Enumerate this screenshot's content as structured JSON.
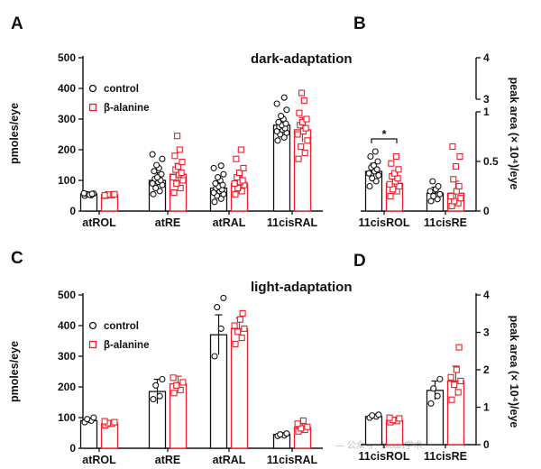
{
  "colors": {
    "control": "#111111",
    "beta_alanine": "#e8202a"
  },
  "panel_letters": {
    "A": "A",
    "B": "B",
    "C": "C",
    "D": "D"
  },
  "titles": {
    "dark": "dark-adaptation",
    "light": "light-adaptation"
  },
  "axes": {
    "left_ylabel": "pmoles/eye",
    "right_ylabel": "peak area (× 10⁴)/eye",
    "left_ticks": [
      "0",
      "100",
      "200",
      "300",
      "400",
      "500"
    ],
    "right_ticks_D": [
      "0",
      "1",
      "2",
      "3",
      "4"
    ],
    "right_ticks_B_upper": [
      "3",
      "4"
    ],
    "right_ticks_B_lower": [
      "0",
      "0.5",
      "1"
    ]
  },
  "legend": {
    "control": "control",
    "beta_alanine": "β-alanine"
  },
  "significance": {
    "B": "*"
  },
  "watermark": "— 公众号 · bioart学术",
  "chart_data": [
    {
      "panel": "A",
      "type": "bar",
      "title": "dark-adaptation",
      "ylabel": "pmoles/eye",
      "ylim": [
        0,
        500
      ],
      "categories": [
        "atROL",
        "atRE",
        "atRAL",
        "11cisRAL"
      ],
      "series": [
        {
          "name": "control",
          "values": [
            55,
            100,
            75,
            280
          ],
          "err": [
            5,
            25,
            22,
            28
          ],
          "points": [
            [
              50,
              52,
              55,
              57,
              58,
              53,
              56
            ],
            [
              55,
              65,
              75,
              85,
              90,
              95,
              100,
              105,
              110,
              120,
              130,
              140,
              150,
              170,
              185
            ],
            [
              30,
              40,
              50,
              55,
              60,
              65,
              70,
              75,
              80,
              85,
              90,
              100,
              110,
              120,
              140,
              148
            ],
            [
              230,
              240,
              250,
              255,
              260,
              265,
              270,
              275,
              280,
              285,
              290,
              300,
              310,
              330,
              350,
              370
            ]
          ]
        },
        {
          "name": "β-alanine",
          "values": [
            53,
            120,
            90,
            265
          ],
          "err": [
            4,
            35,
            22,
            40
          ],
          "points": [
            [
              50,
              52,
              54,
              55,
              51
            ],
            [
              60,
              75,
              90,
              100,
              110,
              120,
              125,
              135,
              145,
              160,
              180,
              200,
              245
            ],
            [
              55,
              65,
              75,
              85,
              90,
              95,
              100,
              110,
              125,
              140,
              170,
              200
            ],
            [
              170,
              190,
              210,
              230,
              250,
              260,
              270,
              280,
              290,
              300,
              320,
              360,
              385
            ]
          ]
        }
      ]
    },
    {
      "panel": "B",
      "type": "bar",
      "ylabel": "peak area (× 10⁴)/eye",
      "ylim": [
        0,
        4
      ],
      "axis_break": [
        1,
        3
      ],
      "categories": [
        "11cisROL",
        "11cisRE"
      ],
      "series": [
        {
          "name": "control",
          "values": [
            0.4,
            0.18
          ],
          "err": [
            0.08,
            0.06
          ],
          "points": [
            [
              0.25,
              0.3,
              0.33,
              0.36,
              0.38,
              0.4,
              0.42,
              0.44,
              0.46,
              0.5,
              0.55,
              0.6
            ],
            [
              0.1,
              0.12,
              0.15,
              0.17,
              0.2,
              0.22,
              0.25,
              0.3
            ]
          ]
        },
        {
          "name": "β-alanine",
          "values": [
            0.28,
            0.18
          ],
          "err": [
            0.1,
            0.12
          ],
          "points": [
            [
              0.15,
              0.2,
              0.22,
              0.25,
              0.27,
              0.3,
              0.33,
              0.35,
              0.38,
              0.42,
              0.48,
              0.55
            ],
            [
              0.05,
              0.08,
              0.1,
              0.13,
              0.15,
              0.2,
              0.25,
              0.32,
              0.45,
              0.55,
              0.65
            ]
          ]
        }
      ]
    },
    {
      "panel": "C",
      "type": "bar",
      "title": "light-adaptation",
      "ylabel": "pmoles/eye",
      "ylim": [
        0,
        500
      ],
      "categories": [
        "atROL",
        "atRE",
        "atRAL",
        "11cisRAL"
      ],
      "series": [
        {
          "name": "control",
          "values": [
            90,
            185,
            370,
            45
          ],
          "err": [
            8,
            40,
            65,
            5
          ],
          "points": [
            [
              85,
              90,
              95,
              100
            ],
            [
              160,
              170,
              205,
              225
            ],
            [
              300,
              390,
              460,
              490
            ],
            [
              40,
              42,
              45,
              48
            ]
          ]
        },
        {
          "name": "β-alanine",
          "values": [
            80,
            210,
            390,
            68
          ],
          "err": [
            8,
            25,
            35,
            12
          ],
          "points": [
            [
              75,
              80,
              82,
              85,
              88
            ],
            [
              180,
              190,
              205,
              215,
              230
            ],
            [
              340,
              360,
              380,
              390,
              400,
              420,
              440
            ],
            [
              55,
              60,
              65,
              70,
              80,
              90
            ]
          ]
        }
      ]
    },
    {
      "panel": "D",
      "type": "bar",
      "ylabel": "peak area (× 10⁴)/eye",
      "ylim": [
        0,
        4
      ],
      "categories": [
        "11cisROL",
        "11cisRE"
      ],
      "series": [
        {
          "name": "control",
          "values": [
            0.75,
            1.45
          ],
          "err": [
            0.05,
            0.25
          ],
          "points": [
            [
              0.72,
              0.75,
              0.78,
              0.8
            ],
            [
              1.1,
              1.3,
              1.5,
              1.75
            ]
          ]
        },
        {
          "name": "β-alanine",
          "values": [
            0.65,
            1.7
          ],
          "err": [
            0.08,
            0.4
          ],
          "points": [
            [
              0.6,
              0.63,
              0.66,
              0.7,
              0.72
            ],
            [
              1.2,
              1.4,
              1.6,
              1.7,
              1.8,
              2.0,
              2.6
            ]
          ]
        }
      ]
    }
  ]
}
